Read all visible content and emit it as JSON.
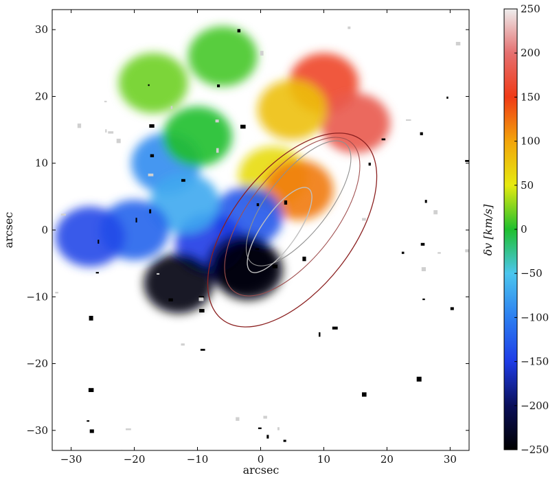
{
  "chart_data": {
    "type": "heatmap",
    "xlabel": "arcsec",
    "ylabel": "arcsec",
    "xlim": [
      -33,
      33
    ],
    "ylim": [
      -33,
      33
    ],
    "x_ticks": [
      -30,
      -20,
      -10,
      0,
      10,
      20,
      30
    ],
    "x_tick_labels": [
      "−30",
      "−20",
      "−10",
      "0",
      "10",
      "20",
      "30"
    ],
    "y_ticks": [
      30,
      20,
      10,
      0,
      -10,
      -20,
      -30
    ],
    "y_tick_labels": [
      "30",
      "20",
      "10",
      "0",
      "−10",
      "−20",
      "−30"
    ],
    "colorbar": {
      "label": "δv [km/s]",
      "range": [
        -250,
        250
      ],
      "ticks": [
        250,
        200,
        150,
        100,
        50,
        0,
        -50,
        -100,
        -150,
        -200,
        -250
      ],
      "tick_labels": [
        "250",
        "200",
        "150",
        "100",
        "50",
        "0",
        "−50",
        "−100",
        "−150",
        "−200",
        "−250"
      ],
      "colormap_stops": [
        {
          "value": -250,
          "color": "#000000"
        },
        {
          "value": -200,
          "color": "#0a0f5a"
        },
        {
          "value": -150,
          "color": "#1e3ce6"
        },
        {
          "value": -100,
          "color": "#2c7ef0"
        },
        {
          "value": -50,
          "color": "#4cc6ee"
        },
        {
          "value": 0,
          "color": "#1fbf2e"
        },
        {
          "value": 50,
          "color": "#e6ea10"
        },
        {
          "value": 100,
          "color": "#f2a40a"
        },
        {
          "value": 150,
          "color": "#f03a16"
        },
        {
          "value": 200,
          "color": "#e57070"
        },
        {
          "value": 250,
          "color": "#eeeeee"
        }
      ]
    },
    "velocity_regions": [
      {
        "x": 10,
        "y": 22,
        "value": 160
      },
      {
        "x": 15,
        "y": 16,
        "value": 180
      },
      {
        "x": 5,
        "y": 18,
        "value": 80
      },
      {
        "x": 2,
        "y": 8,
        "value": 60
      },
      {
        "x": 6,
        "y": 6,
        "value": 120
      },
      {
        "x": -2,
        "y": 2,
        "value": -130
      },
      {
        "x": -8,
        "y": -2,
        "value": -150
      },
      {
        "x": -3,
        "y": -5,
        "value": -200
      },
      {
        "x": -13,
        "y": -8,
        "value": -240
      },
      {
        "x": -2,
        "y": -6,
        "value": -245
      },
      {
        "x": -15,
        "y": 10,
        "value": -90
      },
      {
        "x": -12,
        "y": 4,
        "value": -70
      },
      {
        "x": -20,
        "y": 0,
        "value": -120
      },
      {
        "x": -27,
        "y": -1,
        "value": -140
      },
      {
        "x": -17,
        "y": 22,
        "value": 20
      },
      {
        "x": -6,
        "y": 26,
        "value": 10
      },
      {
        "x": -10,
        "y": 14,
        "value": 0
      }
    ]
  }
}
